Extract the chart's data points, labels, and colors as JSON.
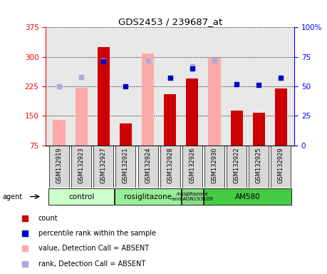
{
  "title": "GDS2453 / 239687_at",
  "samples": [
    "GSM132919",
    "GSM132923",
    "GSM132927",
    "GSM132921",
    "GSM132924",
    "GSM132928",
    "GSM132926",
    "GSM132930",
    "GSM132922",
    "GSM132925",
    "GSM132929"
  ],
  "count_values": [
    null,
    null,
    325,
    130,
    null,
    205,
    245,
    null,
    163,
    158,
    220
  ],
  "count_absent": [
    140,
    222,
    null,
    null,
    308,
    null,
    null,
    297,
    null,
    null,
    null
  ],
  "percentile_rank": [
    null,
    null,
    71,
    50,
    null,
    57,
    65,
    null,
    52,
    51,
    57
  ],
  "percentile_absent": [
    50,
    58,
    72,
    null,
    72,
    null,
    67,
    72,
    null,
    null,
    null
  ],
  "ylim_left": [
    75,
    375
  ],
  "ylim_right": [
    0,
    100
  ],
  "yticks_left": [
    75,
    150,
    225,
    300,
    375
  ],
  "yticks_right": [
    0,
    25,
    50,
    75,
    100
  ],
  "groups": [
    {
      "label": "control",
      "start": 0,
      "end": 3,
      "color": "#ccffcc"
    },
    {
      "label": "rosiglitazone",
      "start": 3,
      "end": 6,
      "color": "#99ee99"
    },
    {
      "label": "rosiglitazone\nand AGN193109",
      "start": 6,
      "end": 7,
      "color": "#88dd88"
    },
    {
      "label": "AM580",
      "start": 7,
      "end": 11,
      "color": "#44cc44"
    }
  ],
  "bar_color_count": "#cc0000",
  "bar_color_absent": "#ffaaaa",
  "dot_color_present": "#0000cc",
  "dot_color_absent": "#aaaadd",
  "bar_width": 0.55,
  "dot_size": 25,
  "legend_items": [
    {
      "color": "#cc0000",
      "label": "count"
    },
    {
      "color": "#0000cc",
      "label": "percentile rank within the sample"
    },
    {
      "color": "#ffaaaa",
      "label": "value, Detection Call = ABSENT"
    },
    {
      "color": "#aaaadd",
      "label": "rank, Detection Call = ABSENT"
    }
  ]
}
